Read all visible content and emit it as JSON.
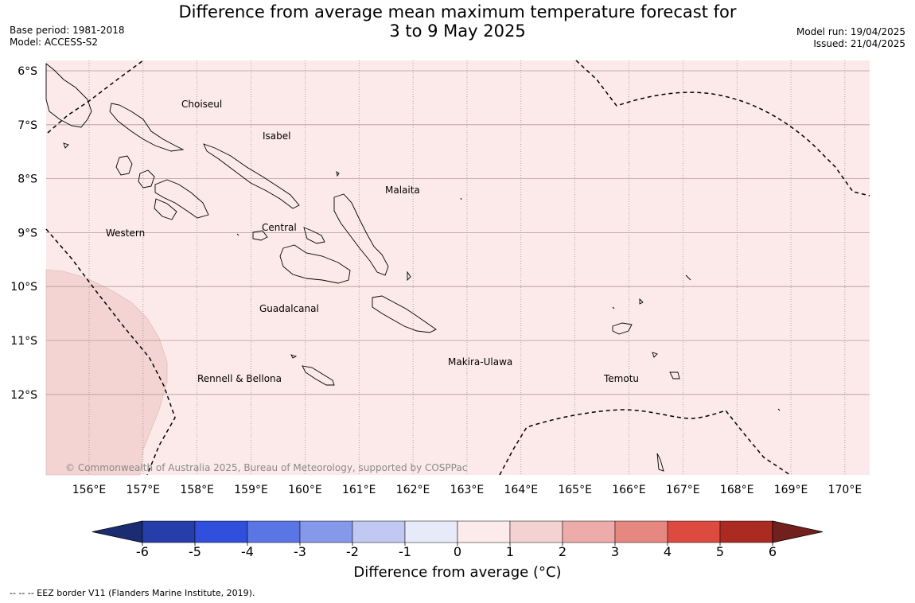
{
  "header": {
    "title_line1": "Difference from average mean maximum temperature forecast for",
    "title_line2": "3 to 9 May 2025",
    "base_period": "Base period: 1981-2018",
    "model": "Model: ACCESS-S2",
    "model_run": "Model run: 19/04/2025",
    "issued": "Issued: 21/04/2025"
  },
  "map": {
    "lon_labels": [
      "156°E",
      "157°E",
      "158°E",
      "159°E",
      "160°E",
      "161°E",
      "162°E",
      "163°E",
      "164°E",
      "165°E",
      "166°E",
      "167°E",
      "168°E",
      "169°E",
      "170°E"
    ],
    "lat_labels": [
      "6°S",
      "7°S",
      "8°S",
      "9°S",
      "10°S",
      "11°S",
      "12°S"
    ],
    "province_labels": [
      "Choiseul",
      "Isabel",
      "Malaita",
      "Western",
      "Central",
      "Guadalcanal",
      "Makira-Ulawa",
      "Rennell & Bellona",
      "Temotu"
    ],
    "copyright": "© Commonwealth of Australia 2025, Bureau of Meteorology, supported by COSPPac",
    "background_color": "#fbeae9",
    "warm_patch_color": "#f3d4d3"
  },
  "colorbar": {
    "ticks": [
      "-6",
      "-5",
      "-4",
      "-3",
      "-2",
      "-1",
      "0",
      "1",
      "2",
      "3",
      "4",
      "5",
      "6"
    ],
    "colors": [
      "#253ea9",
      "#2f4fdc",
      "#5a76e4",
      "#8599ea",
      "#c1c9f3",
      "#e6eaf9",
      "#fdeaea",
      "#f4d2d1",
      "#edacaa",
      "#e68780",
      "#dd4b40",
      "#ab2a22"
    ],
    "low_extend_color": "#1b2c73",
    "high_extend_color": "#72201b",
    "label": "Difference from average (°C)"
  },
  "footer": {
    "eez_note": "--  --  -- EEZ border V11 (Flanders Marine Institute, 2019)."
  }
}
